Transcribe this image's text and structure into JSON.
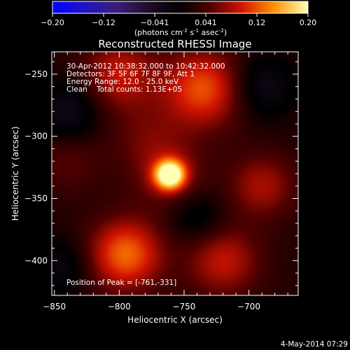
{
  "chart_data": {
    "type": "heatmap",
    "title": "Reconstructed RHESSI Image",
    "xlabel": "Heliocentric X (arcsec)",
    "ylabel": "Heliocentric Y (arcsec)",
    "xlim": [
      -852,
      -662
    ],
    "ylim": [
      -428,
      -232
    ],
    "x_ticks": [
      -850,
      -800,
      -750,
      -700
    ],
    "y_ticks": [
      -250,
      -300,
      -350,
      -400
    ],
    "colorbar": {
      "ticks": [
        "-0.20",
        "-0.12",
        "-0.041",
        "0.041",
        "0.12",
        "0.20"
      ],
      "label": "(photons cm",
      "label_exp1": "-2",
      "label_mid": " s",
      "label_exp2": "-1",
      "label_end": " asec",
      "label_exp3": "-2",
      "label_close": ")",
      "range": [
        -0.2,
        0.2
      ]
    },
    "annotations": [
      "30-Apr-2012 10:38:32.000 to 10:42:32.000",
      "Detectors: 3F 5F 6F 7F 8F 9F, Att 1",
      "Energy Range: 12.0 - 25.0 keV",
      "Clean    Total counts: 1.13E+05"
    ],
    "peak_label": "Position of Peak = [-761,-331]",
    "peak": [
      -761,
      -331
    ],
    "components": [
      {
        "x": -761,
        "y": -331,
        "amp": 0.2,
        "sigma": 8
      },
      {
        "x": -761,
        "y": -331,
        "amp": 0.05,
        "sigma": 20
      },
      {
        "x": -735,
        "y": -262,
        "amp": 0.1,
        "sigma": 22
      },
      {
        "x": -800,
        "y": -250,
        "amp": 0.07,
        "sigma": 20
      },
      {
        "x": -795,
        "y": -395,
        "amp": 0.11,
        "sigma": 20
      },
      {
        "x": -720,
        "y": -400,
        "amp": 0.07,
        "sigma": 20
      },
      {
        "x": -690,
        "y": -340,
        "amp": 0.06,
        "sigma": 18
      },
      {
        "x": -840,
        "y": -320,
        "amp": 0.03,
        "sigma": 18
      },
      {
        "x": -780,
        "y": -300,
        "amp": 0.03,
        "sigma": 20
      },
      {
        "x": -690,
        "y": -260,
        "amp": -0.05,
        "sigma": 18
      },
      {
        "x": -840,
        "y": -280,
        "amp": -0.05,
        "sigma": 18
      },
      {
        "x": -740,
        "y": -365,
        "amp": -0.04,
        "sigma": 16
      },
      {
        "x": -845,
        "y": -405,
        "amp": -0.04,
        "sigma": 16
      }
    ]
  },
  "footer": {
    "date": "4-May-2014 07:29"
  }
}
